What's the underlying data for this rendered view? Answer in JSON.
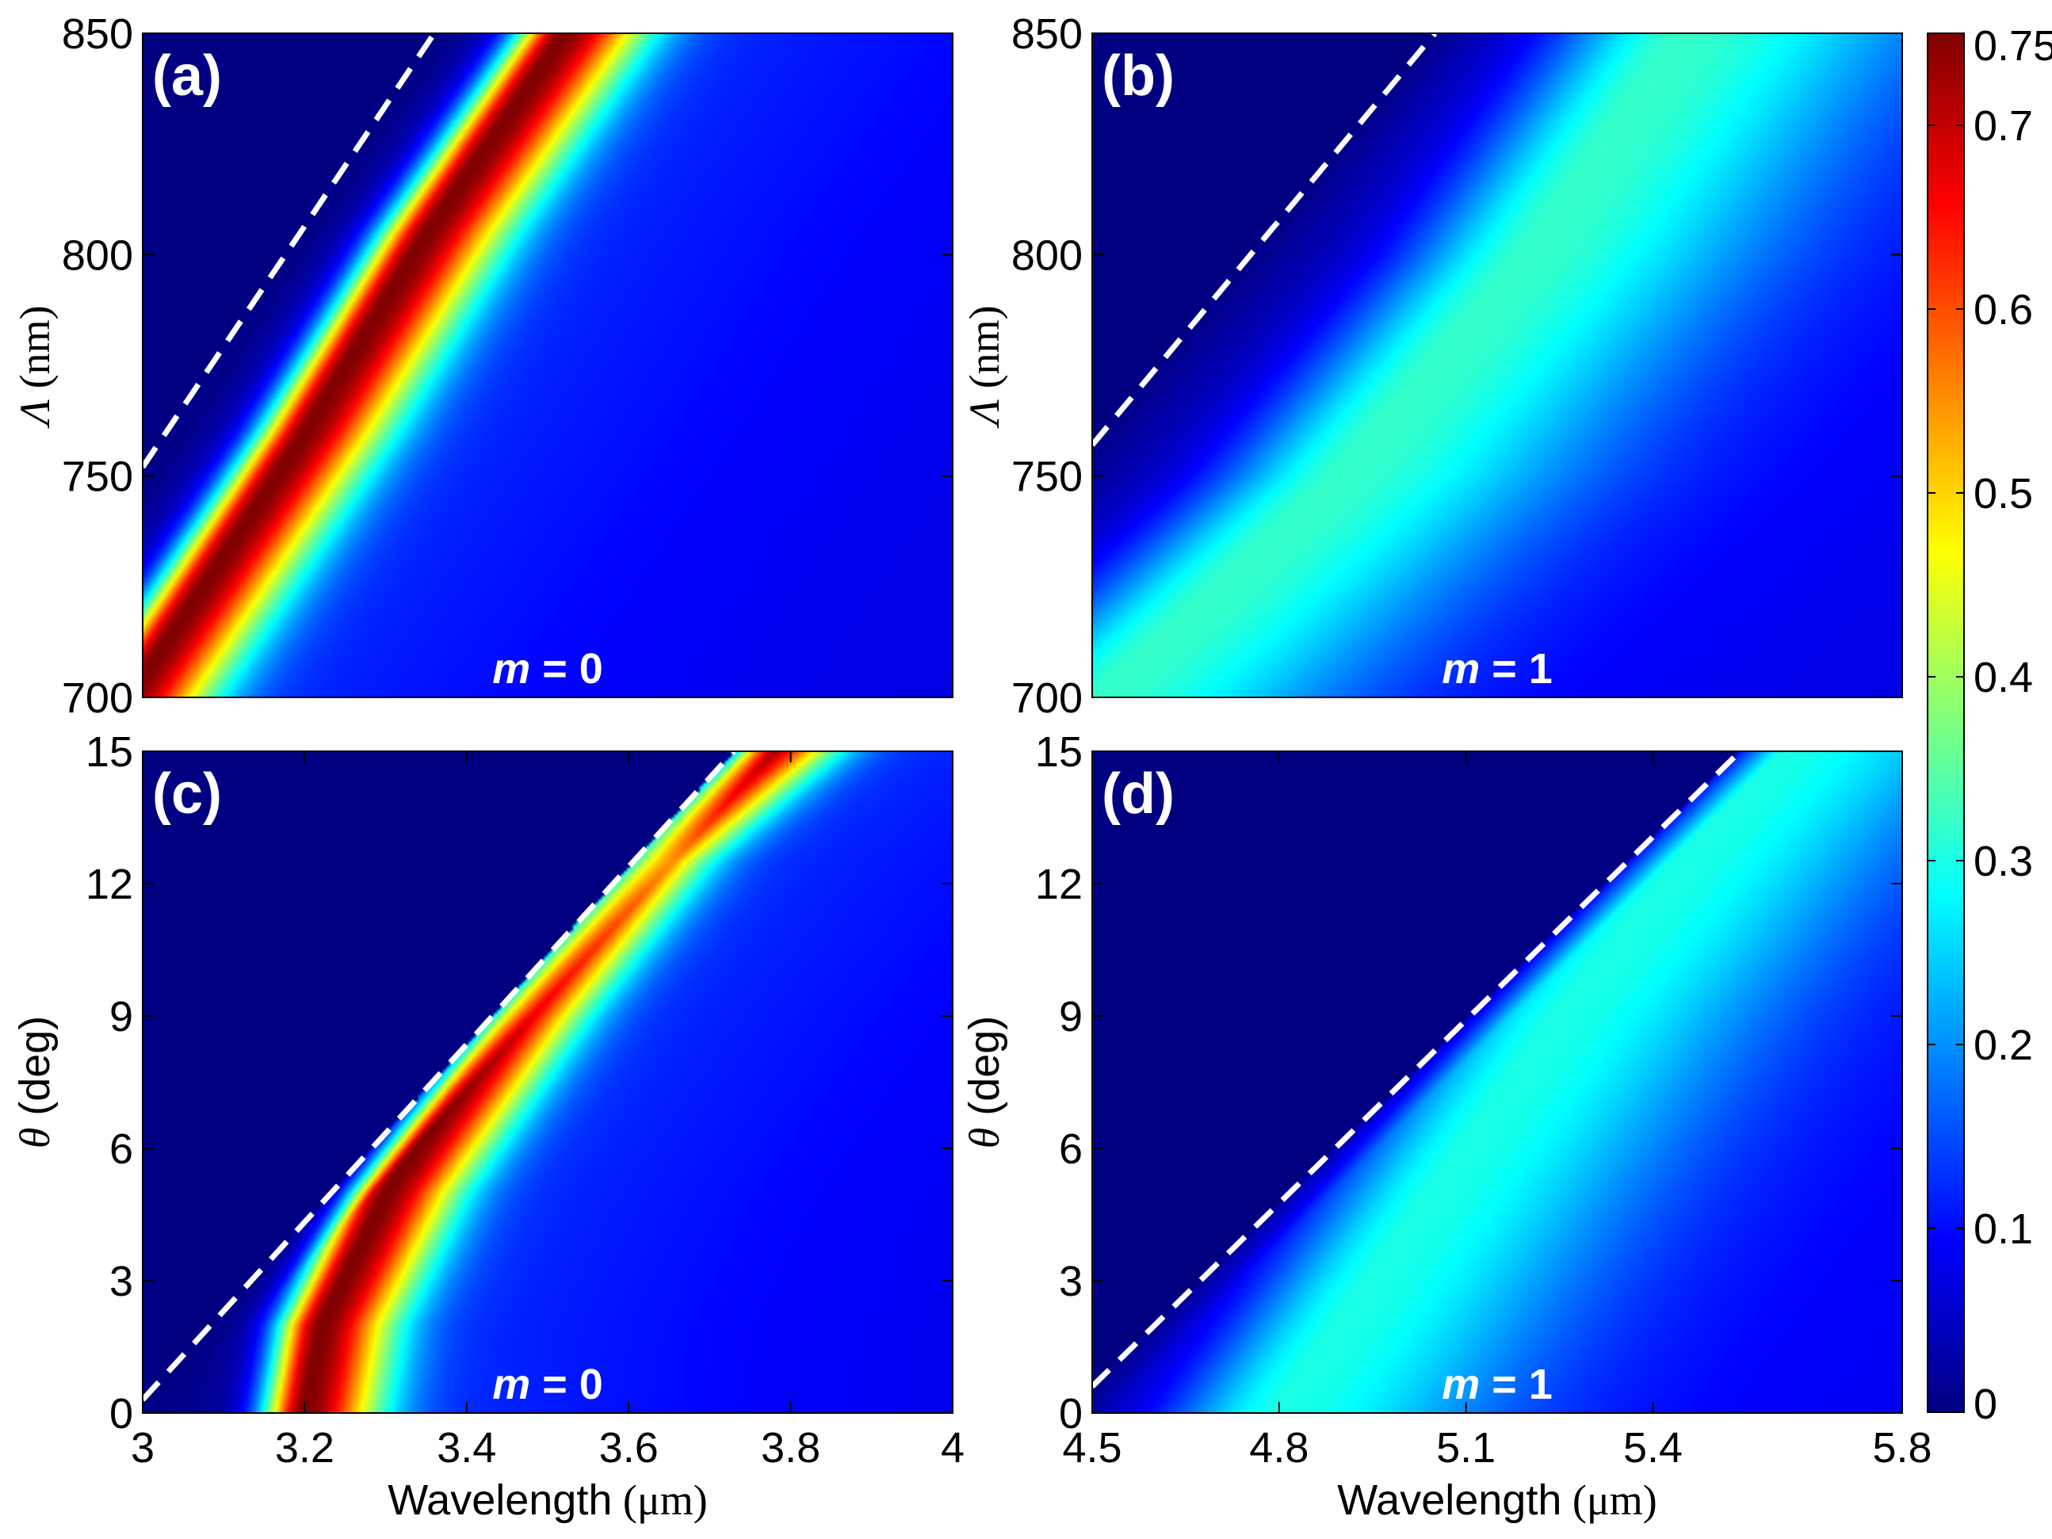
{
  "figure": {
    "colorbar": {
      "ticks": [
        "0",
        "0.1",
        "0.2",
        "0.3",
        "0.4",
        "0.5",
        "0.6",
        "0.7",
        "0.75"
      ],
      "tick_values": [
        0,
        0.1,
        0.2,
        0.3,
        0.4,
        0.5,
        0.6,
        0.7,
        0.75
      ],
      "range": [
        0,
        0.75
      ],
      "colormap": "jet",
      "colors": [
        "#00007f",
        "#0000ff",
        "#007fff",
        "#00ffff",
        "#7fff7f",
        "#ffff00",
        "#ff7f00",
        "#ff0000",
        "#7f0000"
      ]
    },
    "dashed_line_color": "#ffffff"
  },
  "chart_data": [
    {
      "id": "a",
      "type": "heatmap",
      "panel_label": "(a)",
      "annotation": {
        "var": "m",
        "text": " = 0"
      },
      "xlabel": "",
      "ylabel": {
        "symbol": "Λ",
        "unit": " (nm)"
      },
      "xlim": [
        3,
        4
      ],
      "ylim": [
        700,
        850
      ],
      "xticks": [],
      "yticks": [
        "700",
        "750",
        "800",
        "850"
      ],
      "ytick_values": [
        700,
        750,
        800,
        850
      ],
      "resonance_band": {
        "peak_value": 0.75,
        "points": [
          [
            3.0,
            705
          ],
          [
            3.2,
            760
          ],
          [
            3.35,
            805
          ],
          [
            3.52,
            850
          ]
        ],
        "width": 0.05
      },
      "dashed_line": [
        [
          3.0,
          752
        ],
        [
          3.36,
          850
        ]
      ]
    },
    {
      "id": "b",
      "type": "heatmap",
      "panel_label": "(b)",
      "annotation": {
        "var": "m",
        "text": " = 1"
      },
      "xlabel": "",
      "ylabel": {
        "symbol": "Λ",
        "unit": " (nm)"
      },
      "xlim": [
        4.5,
        5.8
      ],
      "ylim": [
        700,
        850
      ],
      "xticks": [],
      "yticks": [
        "700",
        "750",
        "800",
        "850"
      ],
      "ytick_values": [
        700,
        750,
        800,
        850
      ],
      "resonance_band": {
        "peak_value": 0.32,
        "points": [
          [
            4.55,
            705
          ],
          [
            4.9,
            750
          ],
          [
            5.2,
            800
          ],
          [
            5.45,
            850
          ]
        ],
        "width": 0.18
      },
      "dashed_line": [
        [
          4.5,
          757
        ],
        [
          5.05,
          850
        ]
      ]
    },
    {
      "id": "c",
      "type": "heatmap",
      "panel_label": "(c)",
      "annotation": {
        "var": "m",
        "text": " = 0"
      },
      "xlabel": {
        "text": "Wavelength",
        "unit": " (μm)"
      },
      "ylabel": {
        "symbol": "θ",
        "unit": " (deg)"
      },
      "xlim": [
        3,
        4
      ],
      "ylim": [
        0,
        15
      ],
      "xticks": [
        "3",
        "3.2",
        "3.4",
        "3.6",
        "3.8",
        "4"
      ],
      "xtick_values": [
        3,
        3.2,
        3.4,
        3.6,
        3.8,
        4
      ],
      "yticks": [
        "0",
        "3",
        "6",
        "9",
        "12",
        "15"
      ],
      "ytick_values": [
        0,
        3,
        6,
        9,
        12,
        15
      ],
      "resonance_band": {
        "peak_value": 0.75,
        "points": [
          [
            3.2,
            0
          ],
          [
            3.22,
            2
          ],
          [
            3.3,
            5
          ],
          [
            3.45,
            9
          ],
          [
            3.6,
            12.5
          ],
          [
            3.76,
            15
          ]
        ],
        "width": 0.045
      },
      "dashed_line": [
        [
          3.0,
          0.3
        ],
        [
          3.73,
          15
        ]
      ]
    },
    {
      "id": "d",
      "type": "heatmap",
      "panel_label": "(d)",
      "annotation": {
        "var": "m",
        "text": " = 1"
      },
      "xlabel": {
        "text": "Wavelength",
        "unit": " (μm)"
      },
      "ylabel": {
        "symbol": "θ",
        "unit": " (deg)"
      },
      "xlim": [
        4.5,
        5.8
      ],
      "ylim": [
        0,
        15
      ],
      "xticks": [
        "4.5",
        "4.8",
        "5.1",
        "5.4",
        "5.8"
      ],
      "xtick_values": [
        4.5,
        4.8,
        5.1,
        5.4,
        5.8
      ],
      "yticks": [
        "0",
        "3",
        "6",
        "9",
        "12",
        "15"
      ],
      "ytick_values": [
        0,
        3,
        6,
        9,
        12,
        15
      ],
      "resonance_band": {
        "peak_value": 0.3,
        "points": [
          [
            4.8,
            0
          ],
          [
            4.9,
            2
          ],
          [
            5.05,
            5
          ],
          [
            5.25,
            9
          ],
          [
            5.45,
            12.5
          ],
          [
            5.6,
            15
          ]
        ],
        "width": 0.16
      },
      "dashed_line": [
        [
          4.5,
          0.6
        ],
        [
          5.54,
          15
        ]
      ]
    }
  ]
}
